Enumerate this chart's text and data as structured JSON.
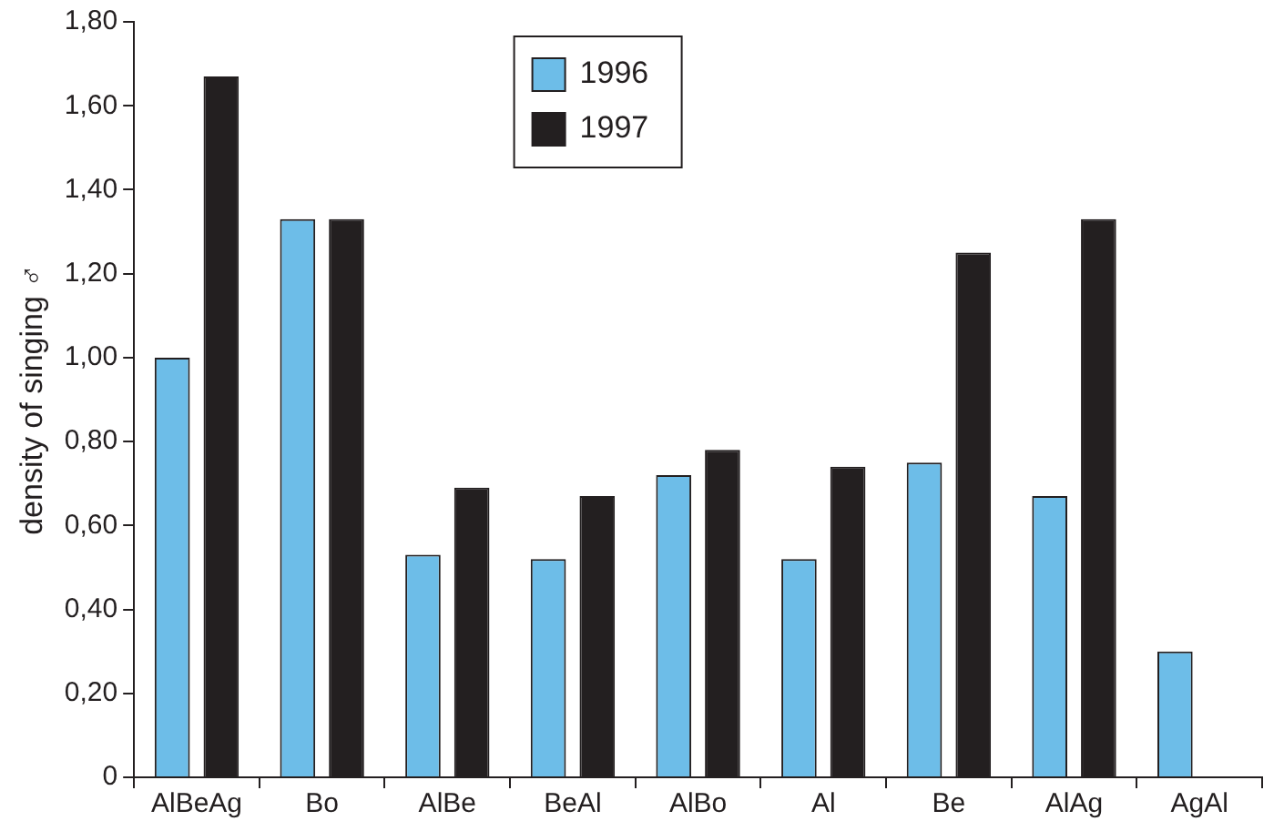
{
  "chart_data": {
    "type": "bar",
    "ylabel": "density of singing ♂",
    "categories": [
      "AlBeAg",
      "Bo",
      "AlBe",
      "BeAl",
      "AlBo",
      "Al",
      "Be",
      "AlAg",
      "AgAl"
    ],
    "series": [
      {
        "name": "1996",
        "color": "#6dbde8",
        "values": [
          1.0,
          1.33,
          0.53,
          0.52,
          0.72,
          0.52,
          0.75,
          0.67,
          0.3
        ]
      },
      {
        "name": "1997",
        "color": "#231f20",
        "values": [
          1.67,
          1.33,
          0.69,
          0.67,
          0.78,
          0.74,
          1.25,
          1.33,
          null
        ]
      }
    ],
    "ylim": [
      0,
      1.8
    ],
    "yticks": [
      {
        "value": 0,
        "label": "0"
      },
      {
        "value": 0.2,
        "label": "0,20"
      },
      {
        "value": 0.4,
        "label": "0,40"
      },
      {
        "value": 0.6,
        "label": "0,60"
      },
      {
        "value": 0.8,
        "label": "0,80"
      },
      {
        "value": 1.0,
        "label": "1,00"
      },
      {
        "value": 1.2,
        "label": "1,20"
      },
      {
        "value": 1.4,
        "label": "1,40"
      },
      {
        "value": 1.6,
        "label": "1,60"
      },
      {
        "value": 1.8,
        "label": "1,80"
      }
    ],
    "grid": false,
    "legend": "top"
  }
}
